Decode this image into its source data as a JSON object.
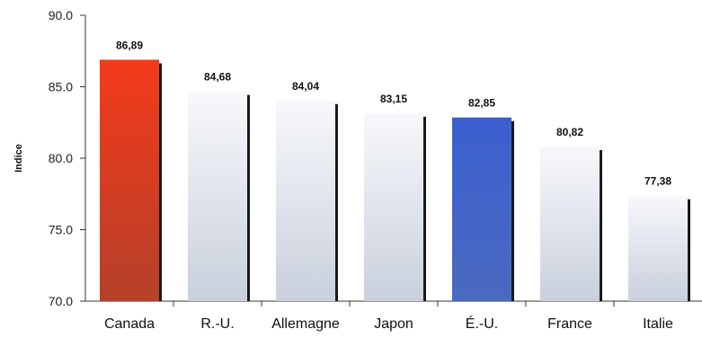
{
  "chart_data": {
    "type": "bar",
    "categories": [
      "Canada",
      "R.-U.",
      "Allemagne",
      "Japon",
      "É.-U.",
      "France",
      "Italie"
    ],
    "values": [
      86.89,
      84.68,
      84.04,
      83.15,
      82.85,
      80.82,
      77.38
    ],
    "value_labels": [
      "86,89",
      "84,68",
      "84,04",
      "83,15",
      "82,85",
      "80,82",
      "77,38"
    ],
    "ylabel": "Indice",
    "ylim": [
      70.0,
      90.0
    ],
    "yticks": [
      "70.0",
      "75.0",
      "80.0",
      "85.0",
      "90.0"
    ],
    "colors": {
      "Canada": "#d83a1c",
      "É.-U.": "#3f62c4",
      "default": "#dfe4ec"
    }
  }
}
